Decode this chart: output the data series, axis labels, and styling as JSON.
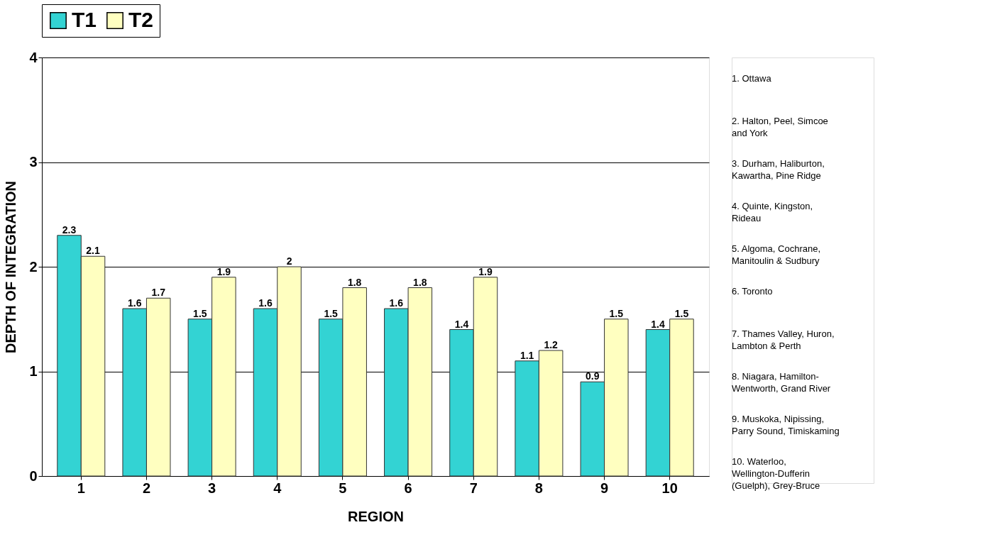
{
  "chart_data": {
    "type": "bar",
    "xlabel": "REGION",
    "ylabel": "DEPTH OF INTEGRATION",
    "categories": [
      "1",
      "2",
      "3",
      "4",
      "5",
      "6",
      "7",
      "8",
      "9",
      "10"
    ],
    "series": [
      {
        "name": "T1",
        "color": "#33d3d3",
        "values": [
          2.3,
          1.6,
          1.5,
          1.6,
          1.5,
          1.6,
          1.4,
          1.1,
          0.9,
          1.4
        ]
      },
      {
        "name": "T2",
        "color": "#ffffc0",
        "values": [
          2.1,
          1.7,
          1.9,
          2,
          1.8,
          1.8,
          1.9,
          1.2,
          1.5,
          1.5
        ]
      }
    ],
    "ylim": [
      0,
      4
    ],
    "yticks": [
      0,
      1,
      2,
      3,
      4
    ],
    "grid": "y",
    "legend": "top",
    "data_labels": true,
    "annotations": [
      "1. Ottawa",
      "2. Halton, Peel, Simcoe and York",
      "3. Durham, Haliburton, Kawartha, Pine Ridge",
      "4. Quinte, Kingston, Rideau",
      "5. Algoma, Cochrane, Manitoulin & Sudbury",
      "6. Toronto",
      "7. Thames Valley, Huron, Lambton & Perth",
      "8. Niagara, Hamilton-Wentworth, Grand River",
      "9. Muskoka, Nipissing, Parry Sound, Timiskaming",
      "10. Waterloo, Wellington-Dufferin (Guelph), Grey-Bruce"
    ]
  }
}
